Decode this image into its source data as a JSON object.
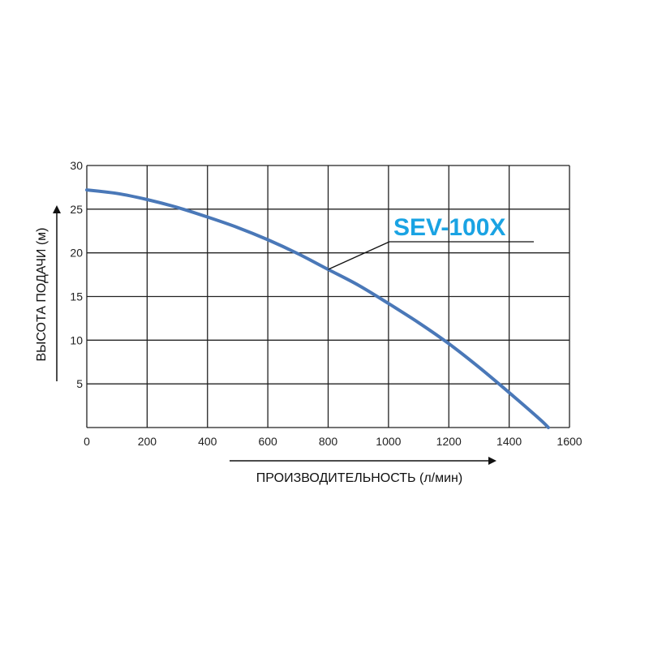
{
  "chart_data": {
    "type": "line",
    "xlabel": "ПРОИЗВОДИТЕЛЬНОСТЬ (л/мин)",
    "ylabel": "ВЫСОТА ПОДАЧИ (м)",
    "xlim": [
      0,
      1600
    ],
    "ylim": [
      0,
      30
    ],
    "x_ticks": [
      "0",
      "200",
      "400",
      "600",
      "800",
      "1000",
      "1200",
      "1400",
      "1600"
    ],
    "y_ticks": [
      "5",
      "10",
      "15",
      "20",
      "25",
      "30"
    ],
    "grid": true,
    "series": [
      {
        "name": "SEV-100X",
        "color": "#4a78b8",
        "x": [
          0,
          100,
          200,
          300,
          400,
          500,
          600,
          700,
          800,
          900,
          1000,
          1100,
          1200,
          1300,
          1400,
          1500,
          1530
        ],
        "y": [
          27.2,
          26.8,
          26.1,
          25.2,
          24.1,
          22.9,
          21.5,
          19.9,
          18.1,
          16.3,
          14.2,
          12.0,
          9.6,
          6.9,
          4.0,
          1.0,
          0
        ]
      }
    ],
    "annotation": {
      "text": "SEV-100X",
      "points_to_x": 800
    }
  }
}
